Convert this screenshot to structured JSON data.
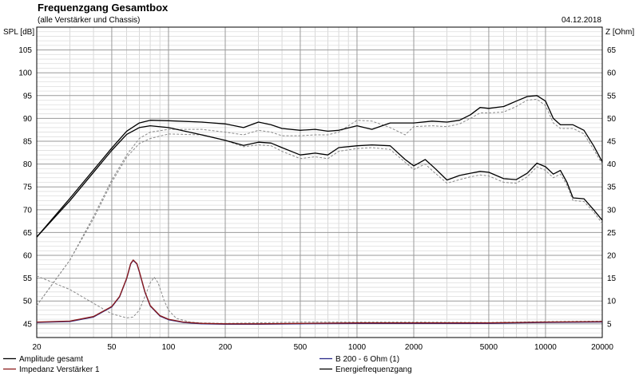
{
  "chart_data": {
    "type": "line",
    "title": "Frequenzgang Gesamtbox",
    "subtitle": "(alle Verstärker und Chassis)",
    "date": "04.12.2018",
    "y_left_label": "SPL [dB]",
    "y_right_label": "Z [Ohm]",
    "x_scale": "log",
    "xlim": [
      20,
      20000
    ],
    "ylim_left": [
      42,
      110
    ],
    "ylim_right": [
      2,
      70
    ],
    "x_ticks": [
      20,
      50,
      100,
      200,
      500,
      1000,
      2000,
      5000,
      10000,
      20000
    ],
    "x_tick_labels": [
      "20",
      "50",
      "100",
      "200",
      "500",
      "1000",
      "2000",
      "5000",
      "10000",
      "20000"
    ],
    "y_left_ticks": [
      45,
      50,
      55,
      60,
      65,
      70,
      75,
      80,
      85,
      90,
      95,
      100,
      105
    ],
    "y_right_ticks": [
      5,
      10,
      15,
      20,
      25,
      30,
      35,
      40,
      45,
      50,
      55,
      60,
      65
    ],
    "grid": true,
    "legend_position": "bottom",
    "series": [
      {
        "name": "Amplitude gesamt",
        "color": "#000000",
        "style": "solid",
        "points": [
          [
            20,
            64
          ],
          [
            30,
            72
          ],
          [
            50,
            83
          ],
          [
            60,
            86.5
          ],
          [
            70,
            88
          ],
          [
            80,
            88.4
          ],
          [
            100,
            88
          ],
          [
            150,
            86.4
          ],
          [
            200,
            85.2
          ],
          [
            250,
            84.1
          ],
          [
            300,
            84.8
          ],
          [
            350,
            84.6
          ],
          [
            400,
            83.6
          ],
          [
            500,
            82
          ],
          [
            600,
            82.4
          ],
          [
            700,
            82
          ],
          [
            800,
            83.6
          ],
          [
            1000,
            84
          ],
          [
            1200,
            84.2
          ],
          [
            1500,
            84
          ],
          [
            1800,
            81
          ],
          [
            2000,
            79.6
          ],
          [
            2300,
            81
          ],
          [
            2600,
            79
          ],
          [
            3000,
            76.5
          ],
          [
            3500,
            77.5
          ],
          [
            4000,
            78
          ],
          [
            4500,
            78.4
          ],
          [
            5000,
            78.2
          ],
          [
            6000,
            76.8
          ],
          [
            7000,
            76.6
          ],
          [
            8000,
            78
          ],
          [
            9000,
            80.2
          ],
          [
            10000,
            79.4
          ],
          [
            11000,
            77.8
          ],
          [
            12000,
            78.6
          ],
          [
            13000,
            76
          ],
          [
            14000,
            72.6
          ],
          [
            16000,
            72.4
          ],
          [
            18000,
            70
          ],
          [
            20000,
            67.7
          ]
        ]
      },
      {
        "name": "Impedanz Verstärker 1",
        "color": "#8b1a1a",
        "style": "solid",
        "points": [
          [
            20,
            5.4
          ],
          [
            30,
            5.6
          ],
          [
            40,
            6.6
          ],
          [
            50,
            8.8
          ],
          [
            55,
            11
          ],
          [
            60,
            15
          ],
          [
            63,
            18.2
          ],
          [
            65,
            19
          ],
          [
            68,
            18.2
          ],
          [
            70,
            16.5
          ],
          [
            75,
            12
          ],
          [
            80,
            9
          ],
          [
            90,
            6.8
          ],
          [
            100,
            6
          ],
          [
            120,
            5.4
          ],
          [
            150,
            5.1
          ],
          [
            200,
            5
          ],
          [
            300,
            5
          ],
          [
            500,
            5.1
          ],
          [
            1000,
            5.2
          ],
          [
            2000,
            5.2
          ],
          [
            5000,
            5.2
          ],
          [
            10000,
            5.4
          ],
          [
            20000,
            5.5
          ]
        ]
      },
      {
        "name": "B 200 - 6 Ohm (1)",
        "color": "#2a2a8a",
        "style": "solid",
        "points": [
          [
            20,
            5.3
          ],
          [
            30,
            5.5
          ],
          [
            40,
            6.5
          ],
          [
            50,
            8.7
          ],
          [
            55,
            10.9
          ],
          [
            60,
            14.9
          ],
          [
            63,
            18.1
          ],
          [
            65,
            18.9
          ],
          [
            68,
            18.1
          ],
          [
            70,
            16.4
          ],
          [
            75,
            11.9
          ],
          [
            80,
            8.9
          ],
          [
            90,
            6.7
          ],
          [
            100,
            5.9
          ],
          [
            120,
            5.3
          ],
          [
            150,
            5
          ],
          [
            200,
            4.9
          ],
          [
            300,
            4.9
          ],
          [
            500,
            5
          ],
          [
            1000,
            5.1
          ],
          [
            2000,
            5.1
          ],
          [
            5000,
            5.1
          ],
          [
            10000,
            5.3
          ],
          [
            20000,
            5.4
          ]
        ]
      },
      {
        "name": "Energiefrequenzgang",
        "color": "#000000",
        "style": "solid",
        "points": [
          [
            20,
            64
          ],
          [
            30,
            72.5
          ],
          [
            50,
            83.5
          ],
          [
            60,
            87.2
          ],
          [
            70,
            89
          ],
          [
            80,
            89.6
          ],
          [
            100,
            89.5
          ],
          [
            150,
            89.2
          ],
          [
            200,
            88.8
          ],
          [
            250,
            88
          ],
          [
            300,
            89.2
          ],
          [
            350,
            88.6
          ],
          [
            400,
            87.8
          ],
          [
            500,
            87.4
          ],
          [
            600,
            87.6
          ],
          [
            700,
            87.2
          ],
          [
            800,
            87.4
          ],
          [
            1000,
            88.4
          ],
          [
            1200,
            87.6
          ],
          [
            1500,
            89
          ],
          [
            2000,
            89
          ],
          [
            2500,
            89.4
          ],
          [
            3000,
            89.2
          ],
          [
            3500,
            89.6
          ],
          [
            4000,
            90.8
          ],
          [
            4500,
            92.4
          ],
          [
            5000,
            92.2
          ],
          [
            6000,
            92.6
          ],
          [
            7000,
            93.8
          ],
          [
            8000,
            94.8
          ],
          [
            9000,
            95
          ],
          [
            10000,
            93.8
          ],
          [
            11000,
            90
          ],
          [
            12000,
            88.6
          ],
          [
            14000,
            88.6
          ],
          [
            16000,
            87.4
          ],
          [
            18000,
            84
          ],
          [
            20000,
            80.5
          ]
        ]
      },
      {
        "name": "",
        "color": "#8a8a8a",
        "style": "dashed",
        "points": [
          [
            20,
            49
          ],
          [
            30,
            59
          ],
          [
            40,
            68
          ],
          [
            50,
            76
          ],
          [
            60,
            81.5
          ],
          [
            70,
            84.5
          ],
          [
            80,
            85.6
          ],
          [
            100,
            86.6
          ],
          [
            150,
            86.4
          ],
          [
            200,
            85.2
          ],
          [
            250,
            83.8
          ],
          [
            300,
            84.2
          ],
          [
            350,
            84
          ],
          [
            400,
            82.8
          ],
          [
            500,
            81.2
          ],
          [
            600,
            81.6
          ],
          [
            700,
            81.2
          ],
          [
            800,
            82.8
          ],
          [
            1000,
            83.4
          ],
          [
            1200,
            83.6
          ],
          [
            1500,
            83.2
          ],
          [
            1800,
            80.4
          ],
          [
            2000,
            78.8
          ],
          [
            2300,
            80
          ],
          [
            2600,
            78
          ],
          [
            3000,
            75.8
          ],
          [
            3500,
            76.6
          ],
          [
            4000,
            77.2
          ],
          [
            4500,
            77.6
          ],
          [
            5000,
            77.4
          ],
          [
            6000,
            76
          ],
          [
            7000,
            75.8
          ],
          [
            8000,
            77.2
          ],
          [
            9000,
            79.4
          ],
          [
            10000,
            78.6
          ],
          [
            11000,
            77
          ],
          [
            12000,
            77.8
          ],
          [
            13000,
            75.4
          ],
          [
            14000,
            72
          ],
          [
            16000,
            71.8
          ],
          [
            18000,
            69.5
          ],
          [
            20000,
            67
          ]
        ]
      },
      {
        "name": "",
        "color": "#8a8a8a",
        "style": "dashed",
        "points": [
          [
            20,
            49
          ],
          [
            30,
            59
          ],
          [
            40,
            68.5
          ],
          [
            50,
            76.5
          ],
          [
            60,
            82
          ],
          [
            70,
            85.6
          ],
          [
            80,
            87
          ],
          [
            100,
            87.6
          ],
          [
            150,
            87.6
          ],
          [
            200,
            87
          ],
          [
            250,
            86.4
          ],
          [
            300,
            87.4
          ],
          [
            350,
            87
          ],
          [
            400,
            86.2
          ],
          [
            500,
            86.2
          ],
          [
            600,
            86.4
          ],
          [
            700,
            86.4
          ],
          [
            800,
            87
          ],
          [
            1000,
            89.6
          ],
          [
            1200,
            89.4
          ],
          [
            1500,
            88
          ],
          [
            1800,
            86.4
          ],
          [
            2000,
            88.2
          ],
          [
            2500,
            88.4
          ],
          [
            3000,
            88.2
          ],
          [
            3500,
            88.8
          ],
          [
            4000,
            90
          ],
          [
            4500,
            91.2
          ],
          [
            5000,
            91.2
          ],
          [
            6000,
            91.4
          ],
          [
            7000,
            92.6
          ],
          [
            8000,
            94
          ],
          [
            9000,
            94.2
          ],
          [
            10000,
            92.8
          ],
          [
            11000,
            89
          ],
          [
            12000,
            87.8
          ],
          [
            14000,
            87.8
          ],
          [
            16000,
            86.6
          ],
          [
            18000,
            83.2
          ],
          [
            20000,
            80
          ]
        ]
      },
      {
        "name": "",
        "color": "#8a8a8a",
        "style": "dashed",
        "points": [
          [
            20,
            15.5
          ],
          [
            30,
            12.5
          ],
          [
            40,
            9.5
          ],
          [
            50,
            7.2
          ],
          [
            60,
            6.3
          ],
          [
            65,
            6.5
          ],
          [
            70,
            8
          ],
          [
            75,
            11
          ],
          [
            80,
            14
          ],
          [
            84,
            15.2
          ],
          [
            88,
            14
          ],
          [
            95,
            10
          ],
          [
            100,
            8
          ],
          [
            110,
            6.2
          ],
          [
            130,
            5.4
          ],
          [
            150,
            5.2
          ],
          [
            200,
            5.1
          ],
          [
            500,
            5.4
          ],
          [
            1000,
            5.4
          ],
          [
            2000,
            5.4
          ],
          [
            5000,
            5.3
          ],
          [
            10000,
            5.5
          ],
          [
            20000,
            5.6
          ]
        ]
      }
    ]
  }
}
